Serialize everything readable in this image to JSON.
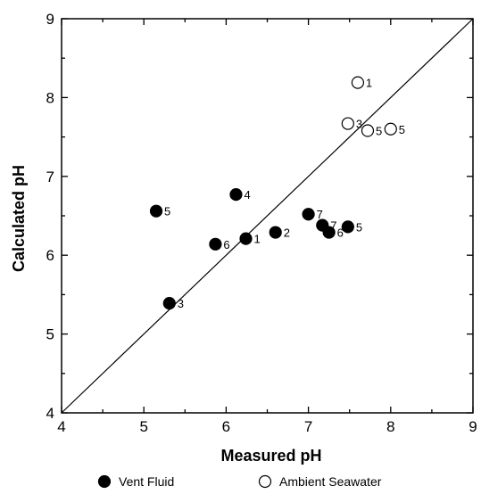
{
  "chart_data": {
    "type": "scatter",
    "xlabel": "Measured pH",
    "ylabel": "Calculated pH",
    "xlim": [
      4,
      9
    ],
    "ylim": [
      4,
      9
    ],
    "x_ticks": [
      "4",
      "5",
      "6",
      "7",
      "8",
      "9"
    ],
    "y_ticks": [
      "4",
      "5",
      "6",
      "7",
      "8",
      "9"
    ],
    "grid": false,
    "reference_line": {
      "type": "1:1",
      "from": [
        4,
        4
      ],
      "to": [
        9,
        9
      ]
    },
    "legend_position": "bottom",
    "series": [
      {
        "name": "Vent Fluid",
        "marker": "filled-circle",
        "color": "#000000",
        "points": [
          {
            "x": 5.15,
            "y": 6.56,
            "label": "5"
          },
          {
            "x": 6.12,
            "y": 6.77,
            "label": "4"
          },
          {
            "x": 5.87,
            "y": 6.14,
            "label": "6"
          },
          {
            "x": 6.24,
            "y": 6.21,
            "label": "1"
          },
          {
            "x": 6.6,
            "y": 6.29,
            "label": "2"
          },
          {
            "x": 5.31,
            "y": 5.39,
            "label": "3"
          },
          {
            "x": 7.0,
            "y": 6.52,
            "label": "7"
          },
          {
            "x": 7.17,
            "y": 6.38,
            "label": "7"
          },
          {
            "x": 7.25,
            "y": 6.29,
            "label": "6"
          },
          {
            "x": 7.48,
            "y": 6.36,
            "label": "5"
          }
        ]
      },
      {
        "name": "Ambient Seawater",
        "marker": "open-circle",
        "color": "#000000",
        "points": [
          {
            "x": 7.6,
            "y": 8.19,
            "label": "1"
          },
          {
            "x": 7.48,
            "y": 7.67,
            "label": "3"
          },
          {
            "x": 7.72,
            "y": 7.58,
            "label": "5"
          },
          {
            "x": 8.0,
            "y": 7.6,
            "label": "5"
          }
        ]
      }
    ]
  }
}
